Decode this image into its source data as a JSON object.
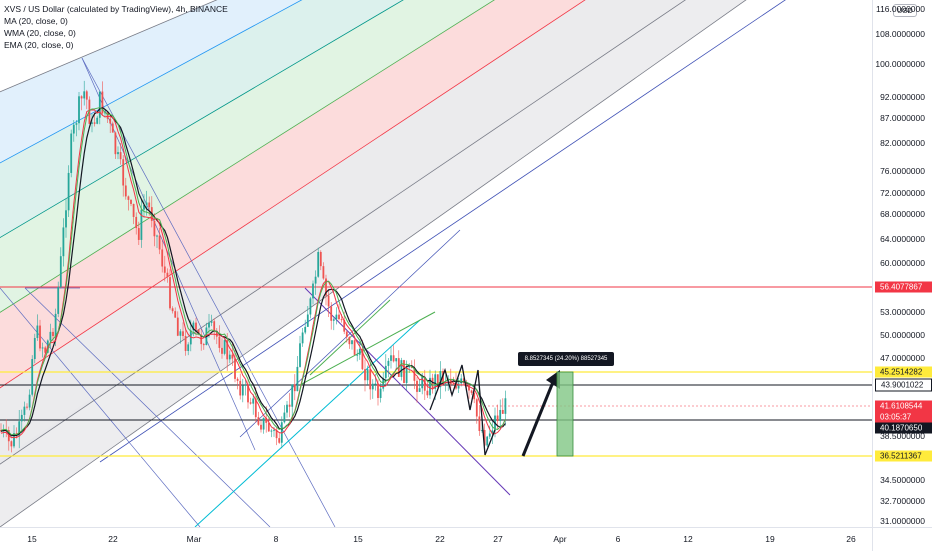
{
  "symbol_line": "XVS / US Dollar (calculated by TradingView), 4h, BINANCE",
  "indicators": [
    "MA (20, close, 0)",
    "WMA (20, close, 0)",
    "EMA (20, close, 0)"
  ],
  "currency_button": "USD",
  "price_labels": [
    "116.0000000",
    "108.0000000",
    "100.0000000",
    "92.0000000",
    "87.0000000",
    "82.0000000",
    "76.0000000",
    "72.0000000",
    "68.0000000",
    "64.0000000",
    "60.0000000",
    "53.0000000",
    "50.0000000",
    "47.0000000",
    "38.5000000",
    "34.5000000",
    "32.7000000",
    "31.0000000"
  ],
  "price_tags": [
    {
      "text": "56.4077867",
      "bg": "#f23645",
      "fg": "#ffffff"
    },
    {
      "text": "45.2514282",
      "bg": "#ffeb3b",
      "fg": "#131722"
    },
    {
      "text": "43.9001022",
      "bg": "#ffffff",
      "fg": "#131722"
    },
    {
      "text": "41.6108544",
      "bg": "#f23645",
      "fg": "#ffffff"
    },
    {
      "text": "03:05:37",
      "bg": "#f23645",
      "fg": "#ffffff"
    },
    {
      "text": "40.1870650",
      "bg": "#131722",
      "fg": "#ffffff"
    },
    {
      "text": "36.5211367",
      "bg": "#ffeb3b",
      "fg": "#131722"
    }
  ],
  "time_labels": [
    "15",
    "22",
    "Mar",
    "8",
    "15",
    "22",
    "27",
    "Apr",
    "6",
    "12",
    "19",
    "26"
  ],
  "measure_label": "8.8527345 (24.20%) 88527345",
  "colors": {
    "bull": "#26a69a",
    "bear": "#ef5350",
    "ma": "#131722",
    "wma": "#f23645",
    "ema": "#4caf50",
    "yellow": "#ffeb3b"
  }
}
